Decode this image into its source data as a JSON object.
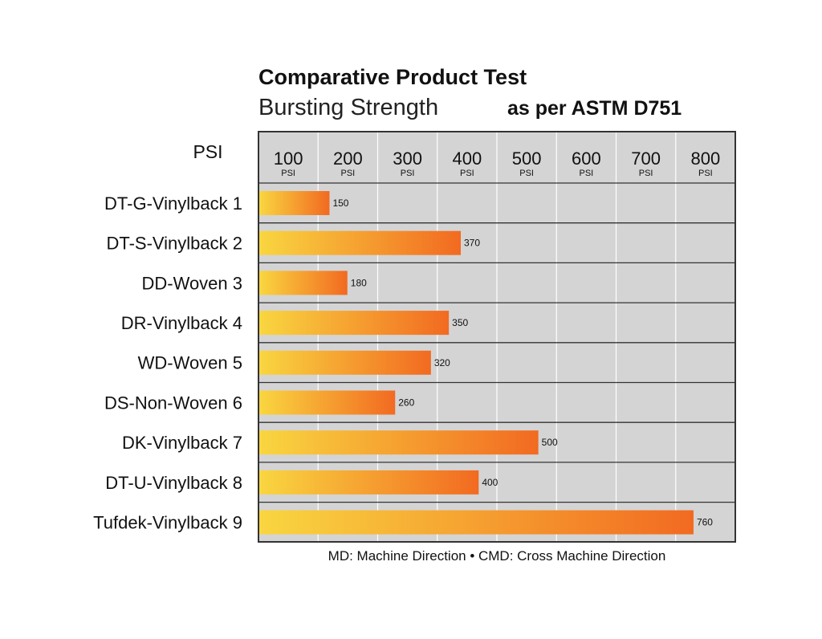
{
  "chart_data": {
    "type": "bar",
    "orientation": "horizontal",
    "title": "Comparative Product Test",
    "subtitle": "Bursting Strength",
    "subtitle_right": "as per ASTM D751",
    "unit_label": "PSI",
    "axis_ticks": [
      {
        "value": 100,
        "label": "100",
        "unit": "PSI"
      },
      {
        "value": 200,
        "label": "200",
        "unit": "PSI"
      },
      {
        "value": 300,
        "label": "300",
        "unit": "PSI"
      },
      {
        "value": 400,
        "label": "400",
        "unit": "PSI"
      },
      {
        "value": 500,
        "label": "500",
        "unit": "PSI"
      },
      {
        "value": 600,
        "label": "600",
        "unit": "PSI"
      },
      {
        "value": 700,
        "label": "700",
        "unit": "PSI"
      },
      {
        "value": 800,
        "label": "800",
        "unit": "PSI"
      }
    ],
    "xlim": [
      0,
      800
    ],
    "categories": [
      "DT-G-Vinylback 1",
      "DT-S-Vinylback 2",
      "DD-Woven 3",
      "DR-Vinylback 4",
      "WD-Woven 5",
      "DS-Non-Woven 6",
      "DK-Vinylback 7",
      "DT-U-Vinylback 8",
      "Tufdek-Vinylback 9"
    ],
    "values": [
      150,
      370,
      180,
      350,
      320,
      260,
      500,
      400,
      760
    ],
    "data_labels": [
      "150",
      "370",
      "180",
      "350",
      "320",
      "260",
      "500",
      "400",
      "760"
    ],
    "footnote": "MD: Machine Direction • CMD: Cross Machine Direction",
    "grid": true,
    "colors": {
      "plot_background": "#d4d4d4",
      "bar_start": "#f9d640",
      "bar_end": "#f26a21",
      "frame": "#333333",
      "gridline": "#ffffff"
    }
  }
}
